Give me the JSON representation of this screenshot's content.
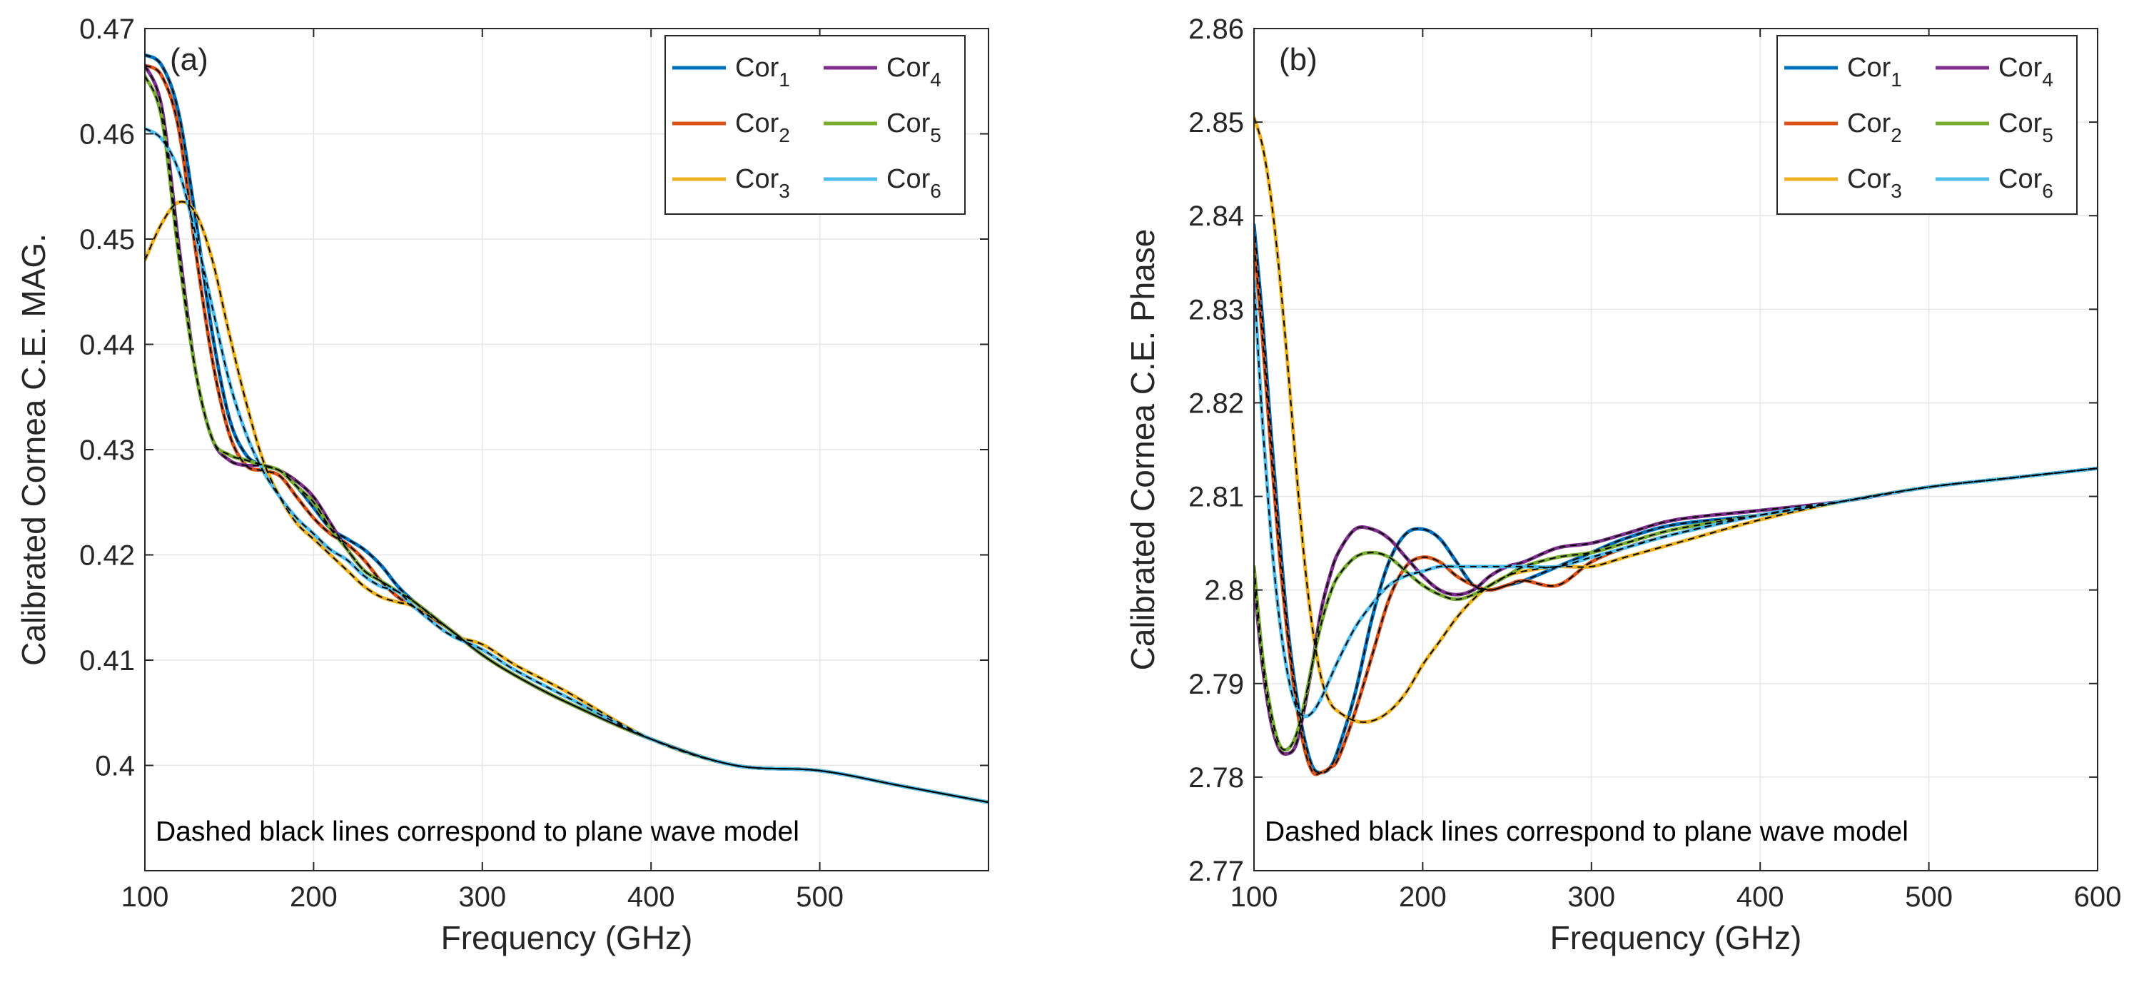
{
  "colors": {
    "Cor1": "#0072bd",
    "Cor2": "#d95319",
    "Cor3": "#edb120",
    "Cor4": "#7e2f8e",
    "Cor5": "#77ac30",
    "Cor6": "#4dbeee",
    "model": "#000000",
    "grid": "#e6e6e6",
    "axis": "#262626"
  },
  "chart_data": [
    {
      "type": "line",
      "panel_label": "(a)",
      "xlabel": "Frequency (GHz)",
      "ylabel": "Calibrated Cornea C.E. MAG.",
      "xlim": [
        100,
        600
      ],
      "ylim": [
        0.39,
        0.47
      ],
      "xticks": [
        100,
        200,
        300,
        400,
        500
      ],
      "xtick_labels": [
        "100",
        "200",
        "300",
        "400",
        "500"
      ],
      "yticks": [
        0.4,
        0.41,
        0.42,
        0.43,
        0.44,
        0.45,
        0.46,
        0.47
      ],
      "ytick_labels": [
        "0.4",
        "0.41",
        "0.42",
        "0.43",
        "0.44",
        "0.45",
        "0.46",
        "0.47"
      ],
      "grid": true,
      "legend_position": "top-right",
      "annotation": "Dashed black lines correspond to plane wave model",
      "series": [
        {
          "name": "Cor1",
          "label_main": "Cor",
          "label_sub": "1",
          "x": [
            100,
            110,
            120,
            130,
            140,
            150,
            160,
            170,
            180,
            190,
            200,
            210,
            220,
            230,
            240,
            250,
            260,
            280,
            300,
            320,
            350,
            400,
            450,
            500,
            550,
            600
          ],
          "y": [
            0.4675,
            0.4665,
            0.462,
            0.452,
            0.441,
            0.433,
            0.4295,
            0.4285,
            0.428,
            0.4265,
            0.4245,
            0.4225,
            0.4215,
            0.4205,
            0.419,
            0.417,
            0.4155,
            0.413,
            0.4105,
            0.4085,
            0.406,
            0.4025,
            0.4,
            0.3995,
            0.398,
            0.3965
          ]
        },
        {
          "name": "Cor2",
          "label_main": "Cor",
          "label_sub": "2",
          "x": [
            100,
            110,
            120,
            130,
            140,
            150,
            160,
            170,
            180,
            190,
            200,
            210,
            220,
            230,
            240,
            250,
            260,
            280,
            300,
            320,
            350,
            400,
            450,
            500,
            550,
            600
          ],
          "y": [
            0.4665,
            0.4655,
            0.4605,
            0.449,
            0.4385,
            0.4315,
            0.4285,
            0.428,
            0.4275,
            0.4255,
            0.4235,
            0.422,
            0.421,
            0.4195,
            0.4175,
            0.416,
            0.415,
            0.413,
            0.4105,
            0.4085,
            0.406,
            0.4025,
            0.4,
            0.3995,
            0.398,
            0.3965
          ]
        },
        {
          "name": "Cor3",
          "label_main": "Cor",
          "label_sub": "3",
          "x": [
            100,
            110,
            120,
            130,
            140,
            150,
            160,
            170,
            180,
            190,
            200,
            210,
            220,
            230,
            240,
            250,
            260,
            280,
            300,
            320,
            350,
            400,
            450,
            500,
            550,
            600
          ],
          "y": [
            0.448,
            0.4515,
            0.4535,
            0.4525,
            0.448,
            0.441,
            0.4345,
            0.429,
            0.4255,
            0.423,
            0.4215,
            0.42,
            0.4185,
            0.417,
            0.416,
            0.4155,
            0.415,
            0.4125,
            0.4115,
            0.4095,
            0.407,
            0.4025,
            0.4,
            0.3995,
            0.398,
            0.3965
          ]
        },
        {
          "name": "Cor4",
          "label_main": "Cor",
          "label_sub": "4",
          "x": [
            100,
            110,
            120,
            130,
            140,
            150,
            160,
            170,
            180,
            190,
            200,
            210,
            220,
            230,
            240,
            250,
            260,
            280,
            300,
            320,
            350,
            400,
            450,
            500,
            550,
            600
          ],
          "y": [
            0.4665,
            0.4625,
            0.4495,
            0.4375,
            0.431,
            0.429,
            0.4285,
            0.4285,
            0.428,
            0.427,
            0.4255,
            0.423,
            0.4205,
            0.4185,
            0.4175,
            0.4165,
            0.4155,
            0.413,
            0.4105,
            0.4085,
            0.406,
            0.4025,
            0.4,
            0.3995,
            0.398,
            0.3965
          ]
        },
        {
          "name": "Cor5",
          "label_main": "Cor",
          "label_sub": "5",
          "x": [
            100,
            110,
            120,
            130,
            140,
            150,
            160,
            170,
            180,
            190,
            200,
            210,
            220,
            230,
            240,
            250,
            260,
            280,
            300,
            320,
            350,
            400,
            450,
            500,
            550,
            600
          ],
          "y": [
            0.4655,
            0.4615,
            0.4485,
            0.4375,
            0.431,
            0.4295,
            0.429,
            0.4285,
            0.428,
            0.4265,
            0.425,
            0.4225,
            0.4205,
            0.4185,
            0.4175,
            0.4165,
            0.4155,
            0.413,
            0.4105,
            0.4085,
            0.406,
            0.4025,
            0.4,
            0.3995,
            0.398,
            0.3965
          ]
        },
        {
          "name": "Cor6",
          "label_main": "Cor",
          "label_sub": "6",
          "x": [
            100,
            110,
            120,
            130,
            140,
            150,
            160,
            170,
            180,
            190,
            200,
            210,
            220,
            230,
            240,
            250,
            260,
            280,
            300,
            320,
            350,
            400,
            450,
            500,
            550,
            600
          ],
          "y": [
            0.4605,
            0.4595,
            0.4565,
            0.4505,
            0.4435,
            0.4365,
            0.4315,
            0.428,
            0.4255,
            0.4235,
            0.422,
            0.4205,
            0.4195,
            0.418,
            0.417,
            0.4165,
            0.415,
            0.4125,
            0.411,
            0.409,
            0.4065,
            0.4025,
            0.4,
            0.3995,
            0.398,
            0.3965
          ]
        }
      ]
    },
    {
      "type": "line",
      "panel_label": "(b)",
      "xlabel": "Frequency (GHz)",
      "ylabel": "Calibrated Cornea C.E. Phase",
      "xlim": [
        100,
        600
      ],
      "ylim": [
        2.77,
        2.86
      ],
      "xticks": [
        100,
        200,
        300,
        400,
        500,
        600
      ],
      "xtick_labels": [
        "100",
        "200",
        "300",
        "400",
        "500",
        "600"
      ],
      "yticks": [
        2.77,
        2.78,
        2.79,
        2.8,
        2.81,
        2.82,
        2.83,
        2.84,
        2.85,
        2.86
      ],
      "ytick_labels": [
        "2.77",
        "2.78",
        "2.79",
        "2.8",
        "2.81",
        "2.82",
        "2.83",
        "2.84",
        "2.85",
        "2.86"
      ],
      "grid": true,
      "legend_position": "top-right",
      "annotation": "Dashed black lines correspond to plane wave model",
      "series": [
        {
          "name": "Cor1",
          "label_main": "Cor",
          "label_sub": "1",
          "x": [
            100,
            105,
            110,
            115,
            120,
            125,
            130,
            135,
            140,
            145,
            150,
            160,
            170,
            180,
            190,
            200,
            210,
            220,
            230,
            240,
            250,
            260,
            280,
            300,
            320,
            350,
            400,
            450,
            500,
            550,
            600
          ],
          "y": [
            2.839,
            2.829,
            2.817,
            2.806,
            2.796,
            2.789,
            2.784,
            2.781,
            2.7805,
            2.781,
            2.783,
            2.789,
            2.797,
            2.803,
            2.806,
            2.8065,
            2.8055,
            2.803,
            2.8005,
            2.8,
            2.8005,
            2.801,
            2.8025,
            2.804,
            2.8055,
            2.807,
            2.808,
            2.8095,
            2.811,
            2.812,
            2.813
          ]
        },
        {
          "name": "Cor2",
          "label_main": "Cor",
          "label_sub": "2",
          "x": [
            100,
            105,
            110,
            115,
            120,
            125,
            130,
            135,
            140,
            145,
            150,
            160,
            170,
            180,
            190,
            200,
            210,
            220,
            230,
            240,
            250,
            260,
            280,
            300,
            320,
            350,
            400,
            450,
            500,
            550,
            600
          ],
          "y": [
            2.837,
            2.827,
            2.815,
            2.804,
            2.795,
            2.788,
            2.783,
            2.7805,
            2.7805,
            2.781,
            2.782,
            2.787,
            2.793,
            2.799,
            2.8025,
            2.8035,
            2.803,
            2.8015,
            2.8005,
            2.8,
            2.8005,
            2.801,
            2.8005,
            2.803,
            2.8045,
            2.806,
            2.808,
            2.8095,
            2.811,
            2.812,
            2.813
          ]
        },
        {
          "name": "Cor3",
          "label_main": "Cor",
          "label_sub": "3",
          "x": [
            100,
            105,
            110,
            115,
            120,
            125,
            130,
            135,
            140,
            145,
            150,
            160,
            170,
            180,
            190,
            200,
            210,
            220,
            230,
            240,
            250,
            260,
            280,
            300,
            320,
            350,
            400,
            450,
            500,
            550,
            600
          ],
          "y": [
            2.8505,
            2.8475,
            2.842,
            2.834,
            2.824,
            2.813,
            2.803,
            2.7955,
            2.7905,
            2.788,
            2.787,
            2.786,
            2.786,
            2.787,
            2.789,
            2.792,
            2.7945,
            2.797,
            2.799,
            2.8005,
            2.8015,
            2.802,
            2.8025,
            2.8025,
            2.8035,
            2.805,
            2.8075,
            2.8095,
            2.811,
            2.812,
            2.813
          ]
        },
        {
          "name": "Cor4",
          "label_main": "Cor",
          "label_sub": "4",
          "x": [
            100,
            105,
            110,
            115,
            120,
            125,
            130,
            135,
            140,
            145,
            150,
            160,
            170,
            180,
            190,
            200,
            210,
            220,
            230,
            240,
            250,
            260,
            280,
            300,
            320,
            350,
            400,
            450,
            500,
            550,
            600
          ],
          "y": [
            2.801,
            2.792,
            2.786,
            2.783,
            2.7825,
            2.7835,
            2.7875,
            2.7925,
            2.798,
            2.8015,
            2.804,
            2.8065,
            2.8065,
            2.8055,
            2.8035,
            2.8015,
            2.8,
            2.7995,
            2.8,
            2.8015,
            2.8025,
            2.803,
            2.8045,
            2.805,
            2.806,
            2.8075,
            2.8085,
            2.8095,
            2.811,
            2.812,
            2.813
          ]
        },
        {
          "name": "Cor5",
          "label_main": "Cor",
          "label_sub": "5",
          "x": [
            100,
            105,
            110,
            115,
            120,
            125,
            130,
            135,
            140,
            145,
            150,
            160,
            170,
            180,
            190,
            200,
            210,
            220,
            230,
            240,
            250,
            260,
            280,
            300,
            320,
            350,
            400,
            450,
            500,
            550,
            600
          ],
          "y": [
            2.8025,
            2.793,
            2.787,
            2.7835,
            2.783,
            2.7845,
            2.788,
            2.7925,
            2.7965,
            2.7995,
            2.8015,
            2.8035,
            2.804,
            2.8035,
            2.802,
            2.8005,
            2.7995,
            2.799,
            2.7995,
            2.8005,
            2.8015,
            2.8025,
            2.8035,
            2.804,
            2.805,
            2.8065,
            2.808,
            2.8095,
            2.811,
            2.812,
            2.813
          ]
        },
        {
          "name": "Cor6",
          "label_main": "Cor",
          "label_sub": "6",
          "x": [
            100,
            105,
            110,
            115,
            120,
            125,
            130,
            135,
            140,
            145,
            150,
            160,
            170,
            180,
            190,
            200,
            210,
            220,
            230,
            240,
            250,
            260,
            280,
            300,
            320,
            350,
            400,
            450,
            500,
            550,
            600
          ],
          "y": [
            2.833,
            2.818,
            2.806,
            2.797,
            2.791,
            2.7875,
            2.7865,
            2.787,
            2.7885,
            2.7905,
            2.7925,
            2.796,
            2.7985,
            2.8005,
            2.8015,
            2.802,
            2.8025,
            2.8025,
            2.8025,
            2.8025,
            2.8025,
            2.8025,
            2.8025,
            2.8035,
            2.8045,
            2.806,
            2.808,
            2.8095,
            2.811,
            2.812,
            2.813
          ]
        }
      ]
    }
  ]
}
